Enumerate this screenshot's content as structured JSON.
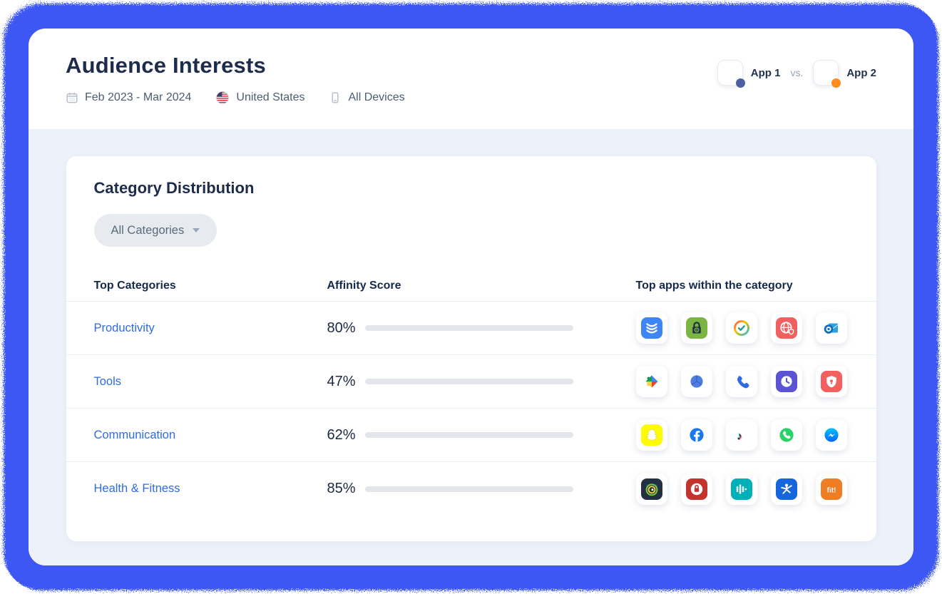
{
  "frame": {
    "border_color": "#3c57f3"
  },
  "header": {
    "title": "Audience Interests",
    "date_range": "Feb 2023 - Mar 2024",
    "country": "United States",
    "devices": "All Devices",
    "compare": {
      "app1_label": "App 1",
      "vs_label": "vs.",
      "app2_label": "App 2",
      "app1_dot_color": "#4c5fa3",
      "app2_dot_color": "#ff8c1f"
    }
  },
  "panel": {
    "title": "Category Distribution",
    "filter_label": "All Categories",
    "columns": {
      "c0": "Top Categories",
      "c1": "Affinity Score",
      "c2": "Top apps within the category"
    },
    "accent_color": "#2a64e9",
    "rows": [
      {
        "category": "Productivity",
        "score": "80%",
        "value": 80,
        "apps": [
          {
            "name": "stack-app-icon",
            "kind": "stack",
            "bg": "#3e86f6"
          },
          {
            "name": "app-lock-icon",
            "kind": "applock",
            "bg": "#7cb543"
          },
          {
            "name": "task-ring-check-icon",
            "kind": "ringcheck",
            "bg": "#ffffff"
          },
          {
            "name": "secure-browser-icon",
            "kind": "globeshield",
            "bg": "#f25f5f"
          },
          {
            "name": "outlook-icon",
            "kind": "outlook",
            "bg": "#ffffff"
          }
        ]
      },
      {
        "category": "Tools",
        "score": "47%",
        "value": 47,
        "apps": [
          {
            "name": "play-services-icon",
            "kind": "playservices",
            "bg": "#ffffff"
          },
          {
            "name": "globe-sphere-icon",
            "kind": "sphere",
            "bg": "#ffffff"
          },
          {
            "name": "phone-app-icon",
            "kind": "phone",
            "bg": "#ffffff"
          },
          {
            "name": "clock-app-icon",
            "kind": "clock",
            "bg": "#5a54d4"
          },
          {
            "name": "shield-app-icon",
            "kind": "shield",
            "bg": "#f26060"
          }
        ]
      },
      {
        "category": "Communication",
        "score": "62%",
        "value": 62,
        "apps": [
          {
            "name": "snapchat-icon",
            "kind": "snapchat",
            "bg": "#fffc00"
          },
          {
            "name": "facebook-icon",
            "kind": "facebook",
            "bg": "#ffffff"
          },
          {
            "name": "tiktok-icon",
            "kind": "tiktok",
            "bg": "#ffffff"
          },
          {
            "name": "whatsapp-icon",
            "kind": "whatsapp",
            "bg": "#ffffff"
          },
          {
            "name": "messenger-icon",
            "kind": "messenger",
            "bg": "#ffffff"
          }
        ]
      },
      {
        "category": "Health & Fitness",
        "score": "85%",
        "value": 85,
        "apps": [
          {
            "name": "sleep-tracker-icon",
            "kind": "sleepring",
            "bg": "#223041"
          },
          {
            "name": "privacy-lock-icon",
            "kind": "redlock",
            "bg": "#c4342f"
          },
          {
            "name": "fitbit-icon",
            "kind": "fitbit",
            "bg": "#00b0b9"
          },
          {
            "name": "myfitnesspal-icon",
            "kind": "jumper",
            "bg": "#1566dd"
          },
          {
            "name": "fit-app-icon",
            "kind": "fittext",
            "bg": "#ef7d24"
          }
        ]
      }
    ]
  }
}
